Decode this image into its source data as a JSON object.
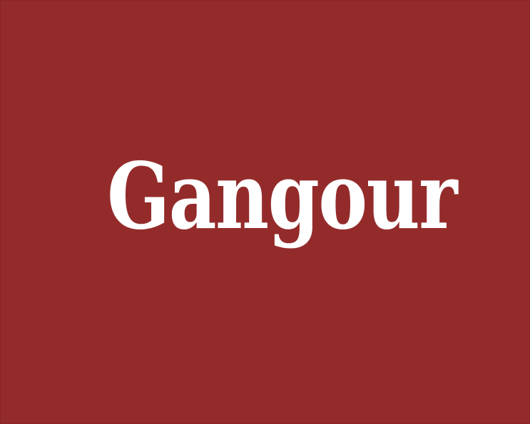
{
  "logo": {
    "wordmark": "Gangour",
    "background_color": "#942b2b",
    "text_color": "#ffffff"
  }
}
